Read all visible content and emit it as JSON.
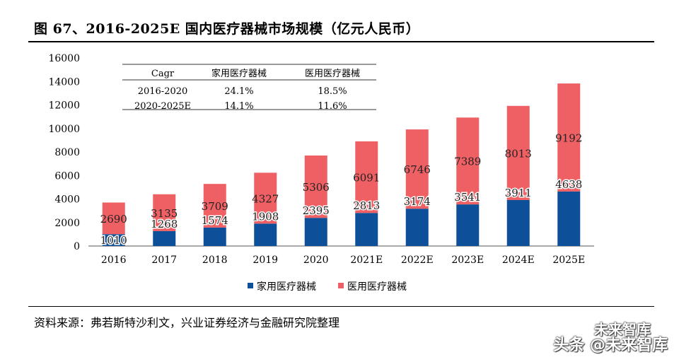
{
  "title": "图 67、2016-2025E 国内医疗器械市场规模（亿元人民币）",
  "source": "资料来源：弗若斯特沙利文，兴业证券经济与金融研究院整理",
  "watermark": {
    "line1": "未来智库",
    "line2": "头条 @未来智库"
  },
  "colors": {
    "home": "#0e4f9a",
    "hospital": "#ee6064"
  },
  "cagr_table": {
    "header": [
      "Cagr",
      "家用医疗器械",
      "医用医疗器械"
    ],
    "rows": [
      [
        "2016-2020",
        "24.1%",
        "18.5%"
      ],
      [
        "2020-2025E",
        "14.1%",
        "11.6%"
      ]
    ]
  },
  "chart_data": {
    "type": "bar",
    "stacked": true,
    "title": "2016-2025E 国内医疗器械市场规模（亿元人民币）",
    "categories": [
      "2016",
      "2017",
      "2018",
      "2019",
      "2020",
      "2021E",
      "2022E",
      "2023E",
      "2024E",
      "2025E"
    ],
    "series": [
      {
        "name": "家用医疗器械",
        "values": [
          1010,
          1268,
          1574,
          1908,
          2395,
          2813,
          3174,
          3541,
          3911,
          4638
        ]
      },
      {
        "name": "医用医疗器械",
        "values": [
          2690,
          3135,
          3709,
          4327,
          5306,
          6091,
          6746,
          7389,
          8013,
          9192
        ]
      }
    ],
    "yticks": [
      0,
      2000,
      4000,
      6000,
      8000,
      10000,
      12000,
      14000,
      16000
    ],
    "ylim": [
      0,
      16000
    ],
    "xlabel": "",
    "ylabel": "",
    "legend": "bottom-center"
  }
}
